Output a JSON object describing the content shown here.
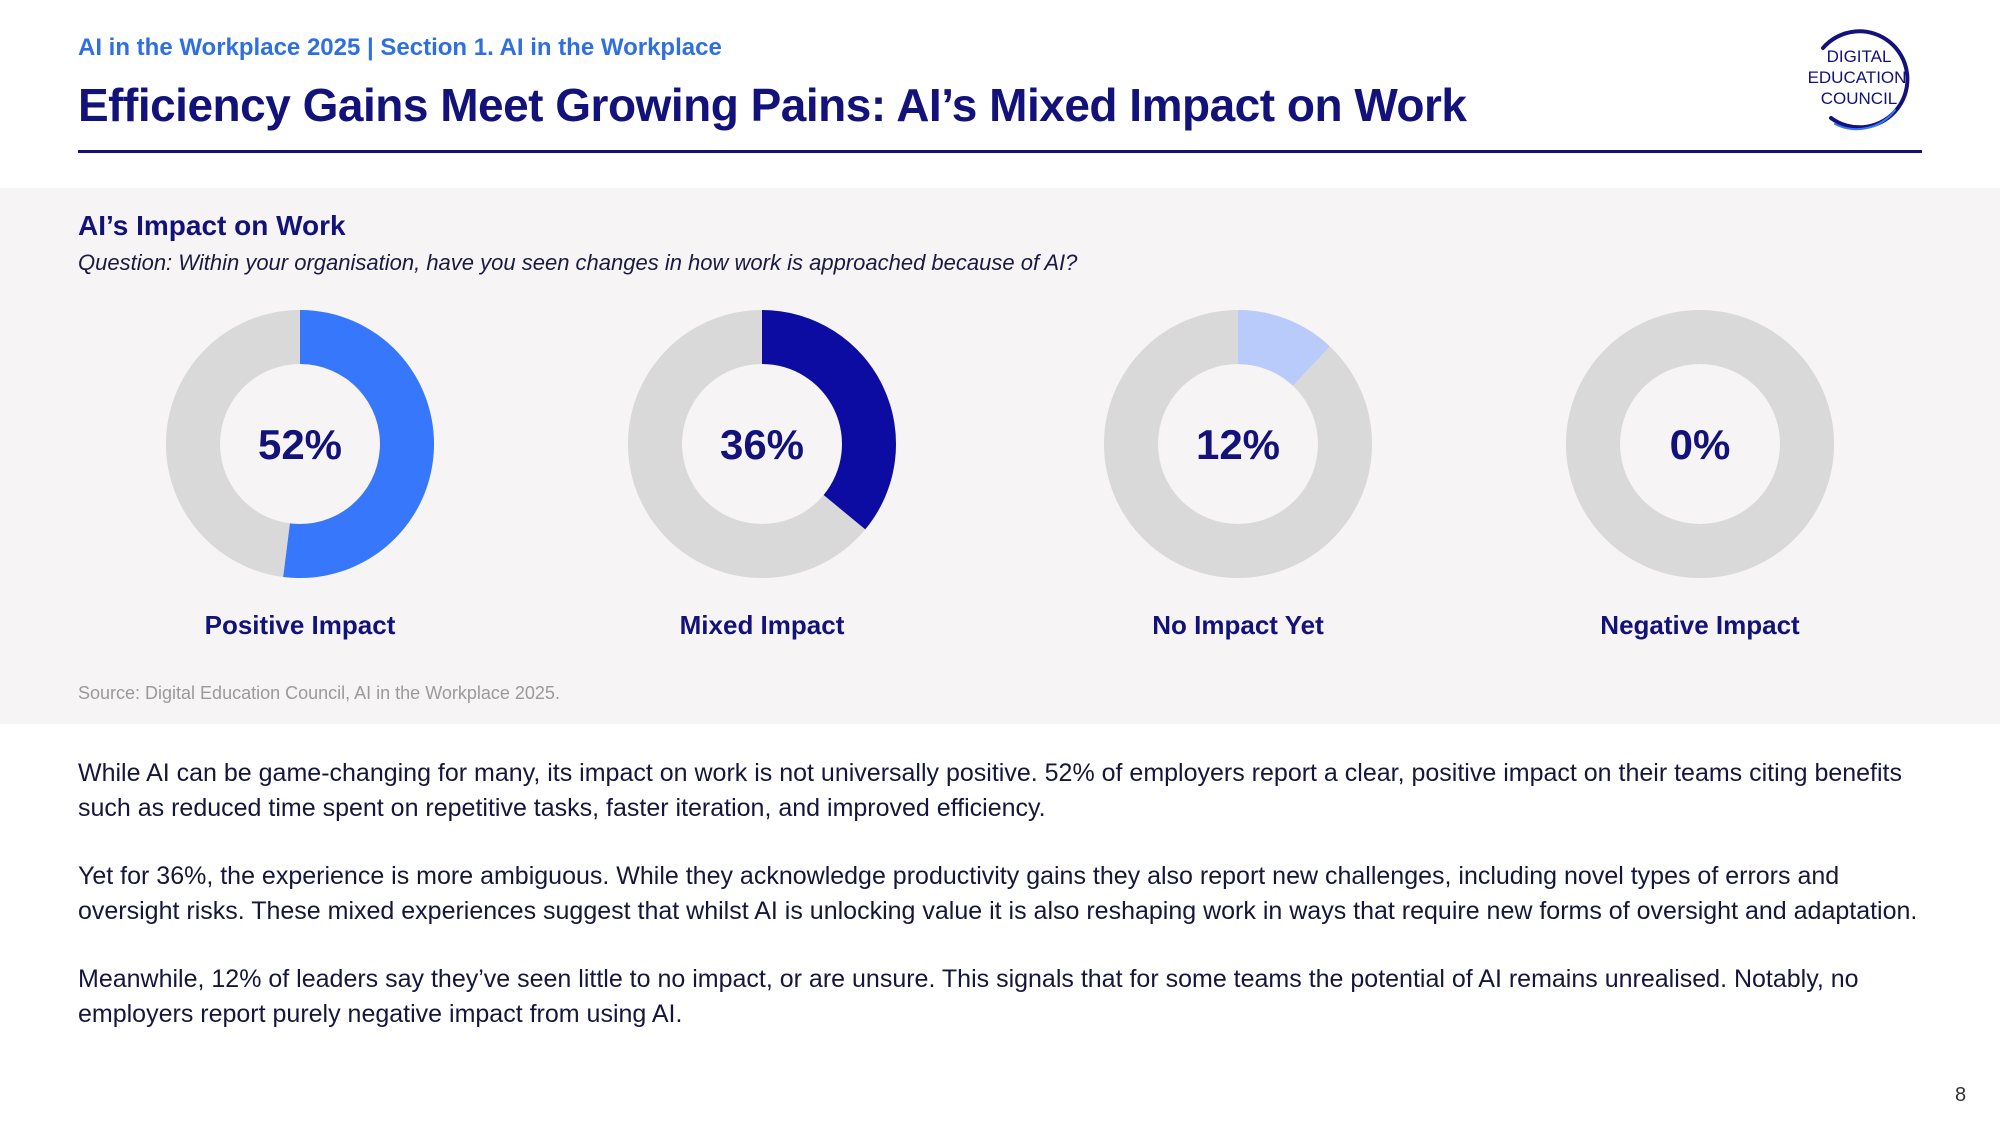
{
  "header": {
    "breadcrumb": "AI in the Workplace 2025 | Section 1. AI in the Workplace",
    "title": "Efficiency Gains Meet Growing Pains: AI’s Mixed Impact on Work",
    "logo_lines": [
      "DIGITAL",
      "EDUCATION",
      "COUNCIL"
    ]
  },
  "chart_data": {
    "type": "pie",
    "title": "AI’s Impact on Work",
    "subtitle": "Question: Within your organisation, have you seen changes in how work is approached because of AI?",
    "unit": "%",
    "items": [
      {
        "label": "Positive Impact",
        "value": 52,
        "display": "52%",
        "color": "#3677fb"
      },
      {
        "label": "Mixed Impact",
        "value": 36,
        "display": "36%",
        "color": "#0c0ca3"
      },
      {
        "label": "No Impact Yet",
        "value": 12,
        "display": "12%",
        "color": "#b9cbfb"
      },
      {
        "label": "Negative Impact",
        "value": 0,
        "display": "0%",
        "color": "#d9d9d9"
      }
    ],
    "remainder_color": "#d9d9d9",
    "source": "Source: Digital Education Council, AI in the Workplace 2025."
  },
  "body": {
    "paragraphs": [
      "While AI can be game-changing for many, its impact on work is not universally positive. 52% of employers report a clear, positive impact on their teams citing benefits such as  reduced time spent on repetitive tasks, faster iteration, and improved efficiency.",
      "Yet for 36%, the experience is more ambiguous. While they acknowledge productivity gains they also report new challenges, including novel types of errors and oversight risks.  These mixed experiences suggest that whilst AI is unlocking value it is also reshaping work in ways that require new forms of oversight and adaptation.",
      "Meanwhile, 12% of leaders say they’ve seen little to no impact, or are unsure. This signals that for some teams the potential of AI remains unrealised. Notably, no employers report purely negative impact from using AI."
    ]
  },
  "footer": {
    "page_number": "8"
  }
}
